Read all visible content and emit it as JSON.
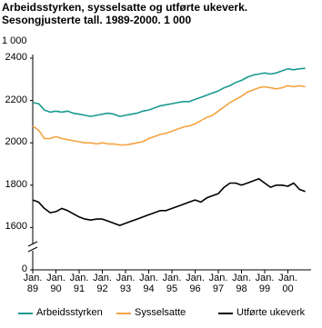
{
  "chart_data": {
    "type": "line",
    "title": "Arbeidsstyrken, sysselsatte og utførte ukeverk.",
    "subtitle": "Sesongjusterte tall. 1989-2000. 1 000",
    "y_label": "1 000",
    "x": [
      1989,
      1989.25,
      1989.5,
      1989.75,
      1990,
      1990.25,
      1990.5,
      1990.75,
      1991,
      1991.25,
      1991.5,
      1991.75,
      1992,
      1992.25,
      1992.5,
      1992.75,
      1993,
      1993.25,
      1993.5,
      1993.75,
      1994,
      1994.25,
      1994.5,
      1994.75,
      1995,
      1995.25,
      1995.5,
      1995.75,
      1996,
      1996.25,
      1996.5,
      1996.75,
      1997,
      1997.25,
      1997.5,
      1997.75,
      1998,
      1998.25,
      1998.5,
      1998.75,
      1999,
      1999.25,
      1999.5,
      1999.75,
      2000,
      2000.25,
      2000.5,
      2000.75
    ],
    "xlim": [
      1989,
      2001
    ],
    "xticks": [
      {
        "value": 1989,
        "label": "Jan.\n89"
      },
      {
        "value": 1990,
        "label": "Jan.\n90"
      },
      {
        "value": 1991,
        "label": "Jan.\n91"
      },
      {
        "value": 1992,
        "label": "Jan.\n92"
      },
      {
        "value": 1993,
        "label": "Jan.\n93"
      },
      {
        "value": 1994,
        "label": "Jan.\n94"
      },
      {
        "value": 1995,
        "label": "Jan.\n95"
      },
      {
        "value": 1996,
        "label": "Jan.\n96"
      },
      {
        "value": 1997,
        "label": "Jan.\n97"
      },
      {
        "value": 1998,
        "label": "Jan.\n98"
      },
      {
        "value": 1999,
        "label": "Jan.\n99"
      },
      {
        "value": 2000,
        "label": "Jan.\n00"
      }
    ],
    "ylim": [
      0,
      2400
    ],
    "axis_break": [
      0,
      1400
    ],
    "yticks": [
      0,
      1600,
      1800,
      2000,
      2200,
      2400
    ],
    "legend": "bottom",
    "series": [
      {
        "name": "Arbeidsstyrken",
        "color": "#1a9a8f",
        "values": [
          2190,
          2185,
          2155,
          2145,
          2150,
          2145,
          2150,
          2140,
          2135,
          2130,
          2125,
          2130,
          2135,
          2140,
          2135,
          2125,
          2130,
          2135,
          2140,
          2150,
          2155,
          2165,
          2175,
          2180,
          2185,
          2190,
          2195,
          2195,
          2205,
          2215,
          2225,
          2235,
          2245,
          2260,
          2270,
          2285,
          2295,
          2310,
          2320,
          2325,
          2330,
          2325,
          2330,
          2340,
          2350,
          2345,
          2350,
          2352
        ]
      },
      {
        "name": "Sysselsatte",
        "color": "#f4a340",
        "values": [
          2080,
          2060,
          2020,
          2020,
          2030,
          2020,
          2015,
          2010,
          2005,
          2000,
          2000,
          1995,
          2000,
          1995,
          1995,
          1990,
          1990,
          1995,
          2000,
          2005,
          2020,
          2030,
          2040,
          2045,
          2055,
          2065,
          2075,
          2080,
          2090,
          2105,
          2120,
          2130,
          2150,
          2170,
          2190,
          2205,
          2220,
          2240,
          2250,
          2260,
          2265,
          2260,
          2255,
          2260,
          2270,
          2265,
          2270,
          2265
        ]
      },
      {
        "name": "Utførte ukeverk",
        "color": "#000000",
        "values": [
          1730,
          1720,
          1690,
          1670,
          1675,
          1690,
          1680,
          1665,
          1650,
          1640,
          1635,
          1640,
          1640,
          1630,
          1620,
          1610,
          1620,
          1630,
          1640,
          1650,
          1660,
          1670,
          1680,
          1680,
          1690,
          1700,
          1710,
          1720,
          1730,
          1720,
          1740,
          1750,
          1760,
          1790,
          1810,
          1810,
          1800,
          1810,
          1820,
          1830,
          1810,
          1790,
          1800,
          1800,
          1795,
          1810,
          1780,
          1770
        ]
      }
    ]
  }
}
